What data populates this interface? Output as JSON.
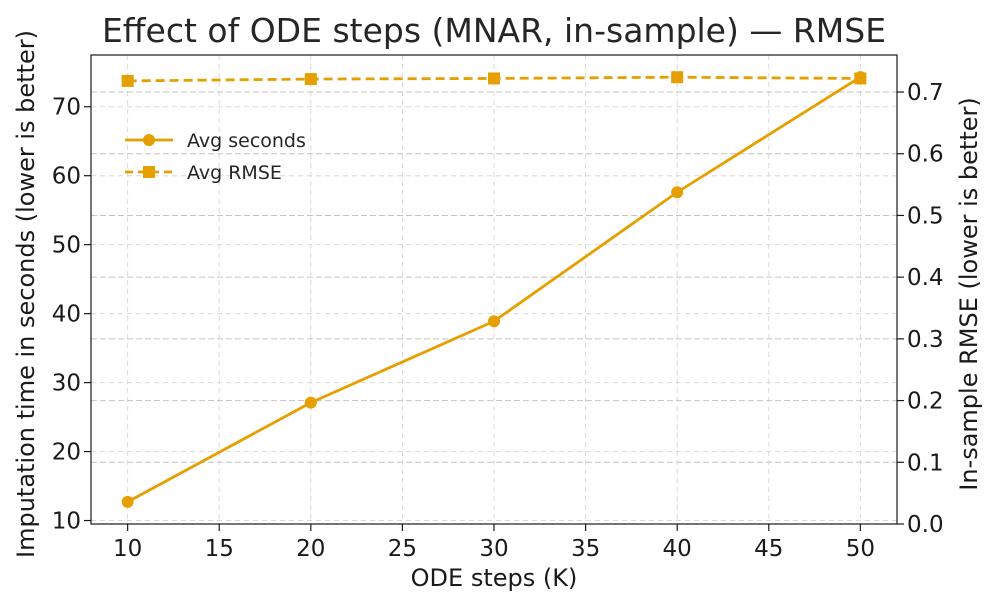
{
  "chart_data": {
    "type": "line",
    "title": "Effect of ODE steps (MNAR, in-sample) — RMSE",
    "xlabel": "ODE steps (K)",
    "ylabel": "Imputation time in seconds (lower is better)",
    "y2label": "In-sample RMSE (lower is better)",
    "x": [
      10,
      20,
      30,
      40,
      50
    ],
    "xlim": [
      8,
      52
    ],
    "ylim": [
      9.5,
      77.5
    ],
    "y2lim": [
      0,
      0.76
    ],
    "xticks": [
      10,
      15,
      20,
      25,
      30,
      35,
      40,
      45,
      50
    ],
    "yticks": [
      10,
      20,
      30,
      40,
      50,
      60,
      70
    ],
    "y2ticks": [
      "0.0",
      "0.1",
      "0.2",
      "0.3",
      "0.4",
      "0.5",
      "0.6",
      "0.7"
    ],
    "grid": true,
    "legend_position": "upper-left",
    "series": [
      {
        "name": "Avg seconds",
        "axis": "left",
        "marker": "circle",
        "line": "solid",
        "color": "#E69F00",
        "values": [
          12.7,
          27.1,
          38.9,
          57.6,
          74.3
        ]
      },
      {
        "name": "Avg RMSE",
        "axis": "right",
        "marker": "square",
        "line": "dashed",
        "color": "#E69F00",
        "values": [
          0.718,
          0.721,
          0.722,
          0.724,
          0.722
        ]
      }
    ]
  }
}
